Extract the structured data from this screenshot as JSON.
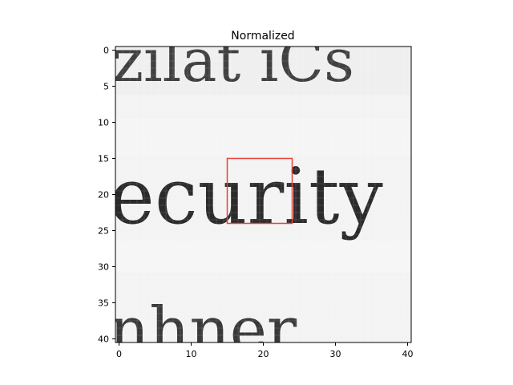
{
  "figure": {
    "title": "Normalized"
  },
  "axes": {
    "x_ticks": [
      "0",
      "10",
      "20",
      "30",
      "40"
    ],
    "y_ticks": [
      "0",
      "5",
      "10",
      "15",
      "20",
      "25",
      "30",
      "35",
      "40"
    ],
    "xlim": [
      -0.5,
      40.5
    ],
    "ylim": [
      40.5,
      -0.5
    ]
  },
  "image": {
    "description_grid_size": 41,
    "colormap": "gray",
    "snippet_lines": [
      {
        "row_center": 1,
        "row_height": 9,
        "fragments": [
          "ziiat iCs"
        ]
      },
      {
        "row_center": 20,
        "row_height": 12,
        "fragments": [
          "ecurity"
        ]
      },
      {
        "row_center": 38,
        "row_height": 8,
        "fragments": [
          "nhner"
        ]
      }
    ]
  },
  "highlight": {
    "x_range": [
      15,
      24
    ],
    "y_range": [
      15,
      24
    ],
    "color": "#e8423b"
  },
  "colors": {
    "axis": "#000000",
    "ink": "#1c1c1c",
    "paper": "#f2f2f2"
  }
}
